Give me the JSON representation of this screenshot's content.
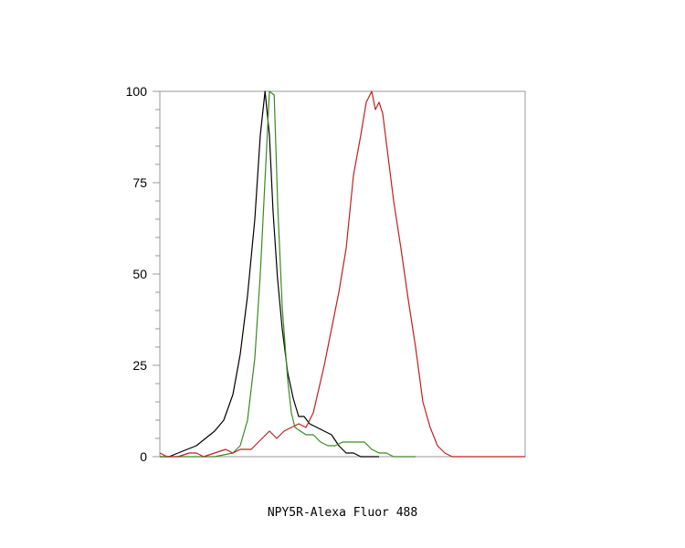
{
  "chart_data": {
    "type": "line",
    "title": "",
    "xlabel": "NPY5R-Alexa Fluor 488",
    "ylabel": "",
    "xlim": [
      0,
      1
    ],
    "ylim": [
      0,
      100
    ],
    "y_ticks": [
      0,
      25,
      50,
      75,
      100
    ],
    "y_tick_labels": [
      "0",
      "25",
      "50",
      "75",
      "100"
    ],
    "x_ticks": [],
    "grid": false,
    "legend": "none",
    "series": [
      {
        "color": "#000000",
        "x": [
          0.0,
          0.025,
          0.05,
          0.075,
          0.1,
          0.125,
          0.15,
          0.175,
          0.2,
          0.22,
          0.24,
          0.26,
          0.275,
          0.288,
          0.3,
          0.31,
          0.322,
          0.335,
          0.35,
          0.365,
          0.38,
          0.395,
          0.41,
          0.43,
          0.45,
          0.47,
          0.49,
          0.51,
          0.53,
          0.55,
          0.57,
          0.6
        ],
        "y": [
          0,
          0,
          1,
          2,
          3,
          5,
          7,
          10,
          17,
          28,
          44,
          65,
          88,
          100,
          88,
          67,
          49,
          35,
          23,
          16,
          11,
          11,
          9,
          8,
          7,
          6,
          3,
          1,
          1,
          0,
          0,
          0
        ]
      },
      {
        "color": "#3b8a1f",
        "x": [
          0.0,
          0.05,
          0.1,
          0.15,
          0.2,
          0.22,
          0.24,
          0.26,
          0.275,
          0.29,
          0.3,
          0.313,
          0.323,
          0.335,
          0.35,
          0.36,
          0.37,
          0.385,
          0.4,
          0.42,
          0.44,
          0.46,
          0.48,
          0.5,
          0.52,
          0.54,
          0.56,
          0.58,
          0.6,
          0.62,
          0.64,
          0.66,
          0.7
        ],
        "y": [
          0,
          0,
          0,
          0,
          1,
          3,
          10,
          27,
          50,
          80,
          100,
          99,
          68,
          41,
          21,
          12,
          8,
          7,
          6,
          6,
          4,
          3,
          3,
          4,
          4,
          4,
          4,
          2,
          1,
          1,
          0,
          0,
          0
        ]
      },
      {
        "color": "#c41e1e",
        "x": [
          0.0,
          0.02,
          0.05,
          0.08,
          0.1,
          0.12,
          0.15,
          0.18,
          0.2,
          0.22,
          0.25,
          0.27,
          0.29,
          0.3,
          0.32,
          0.34,
          0.36,
          0.38,
          0.4,
          0.42,
          0.45,
          0.47,
          0.49,
          0.51,
          0.53,
          0.55,
          0.565,
          0.58,
          0.59,
          0.6,
          0.61,
          0.625,
          0.64,
          0.66,
          0.68,
          0.7,
          0.72,
          0.74,
          0.76,
          0.78,
          0.8,
          0.82,
          0.85,
          0.9,
          0.95,
          0.98,
          1.0
        ],
        "y": [
          1,
          0,
          0,
          1,
          1,
          0,
          1,
          2,
          1,
          2,
          2,
          4,
          6,
          7,
          5,
          7,
          8,
          9,
          8,
          12,
          25,
          35,
          45,
          57,
          77,
          88,
          97,
          100,
          95,
          97,
          94,
          82,
          70,
          57,
          43,
          30,
          15,
          8,
          3,
          1,
          0,
          0,
          0,
          0,
          0,
          0,
          0
        ]
      }
    ]
  }
}
